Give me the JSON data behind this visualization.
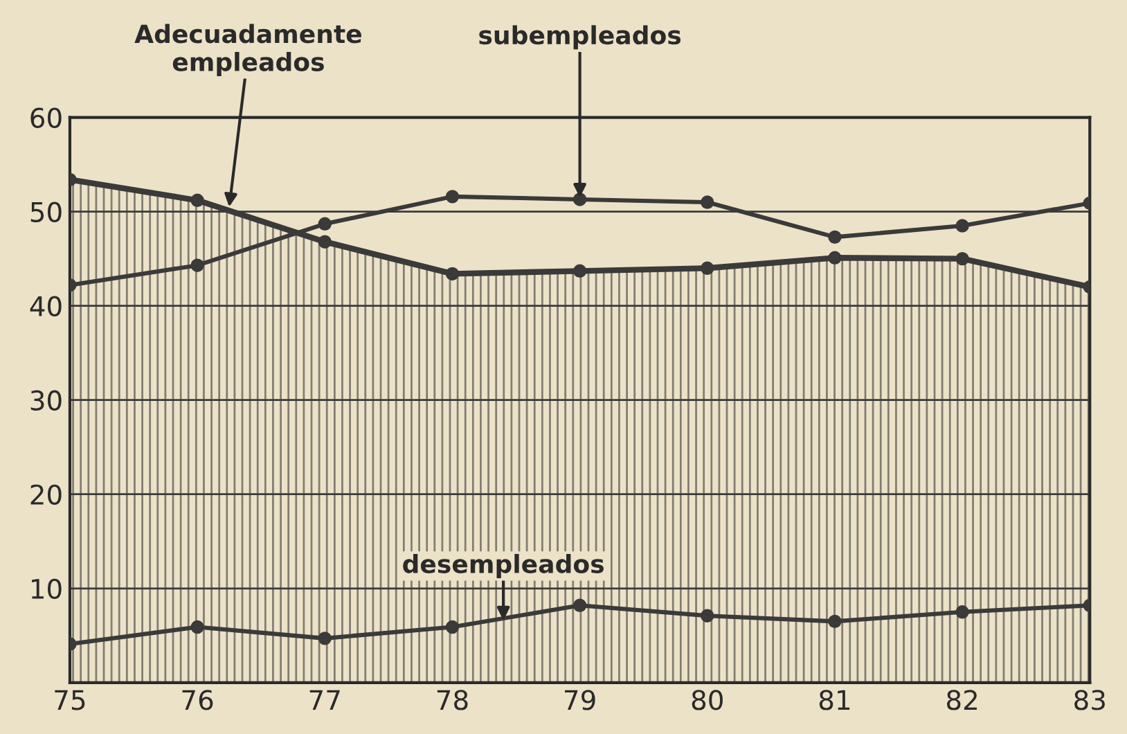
{
  "chart_data": {
    "type": "line",
    "x": [
      1975,
      1976,
      1977,
      1978,
      1979,
      1980,
      1981,
      1982,
      1983
    ],
    "series": [
      {
        "type": "area",
        "color": "#3a3a3a",
        "values": [
          53.4,
          51.2,
          46.8,
          43.4,
          43.7,
          44.0,
          45.1,
          45.0,
          42.0
        ]
      },
      {
        "color": "#3a3a3a",
        "values": [
          42.2,
          44.3,
          48.7,
          51.6,
          51.3,
          51.0,
          47.3,
          48.5,
          50.9
        ]
      },
      {
        "color": "#3a3a3a",
        "values": [
          4.1,
          5.9,
          4.7,
          5.9,
          8.2,
          7.1,
          6.5,
          7.5,
          8.2
        ]
      }
    ],
    "xlim": [
      1975,
      1983
    ],
    "xticks": [
      {
        "value": 1975,
        "label": "75"
      },
      {
        "value": 1976,
        "label": "76"
      },
      {
        "value": 1977,
        "label": "77"
      },
      {
        "value": 1978,
        "label": "78"
      },
      {
        "value": 1979,
        "label": "79"
      },
      {
        "value": 1980,
        "label": "80"
      },
      {
        "value": 1981,
        "label": "81"
      },
      {
        "value": 1982,
        "label": "82"
      },
      {
        "value": 1983,
        "label": "83"
      }
    ],
    "ylim": [
      0,
      60
    ],
    "yticks": [
      {
        "value": 0,
        "label": null
      },
      10,
      20,
      30,
      40,
      50,
      60
    ],
    "grid": "y",
    "marker": "circle",
    "annotations": [
      {
        "text": "Adecuadamente\nempleados",
        "x": 1976.25,
        "y": 50.5
      },
      {
        "text": "subempleados",
        "x": 1979,
        "y": 51.5
      },
      {
        "text": "desempleados",
        "x": 1978.4,
        "y": 6.6
      }
    ]
  }
}
